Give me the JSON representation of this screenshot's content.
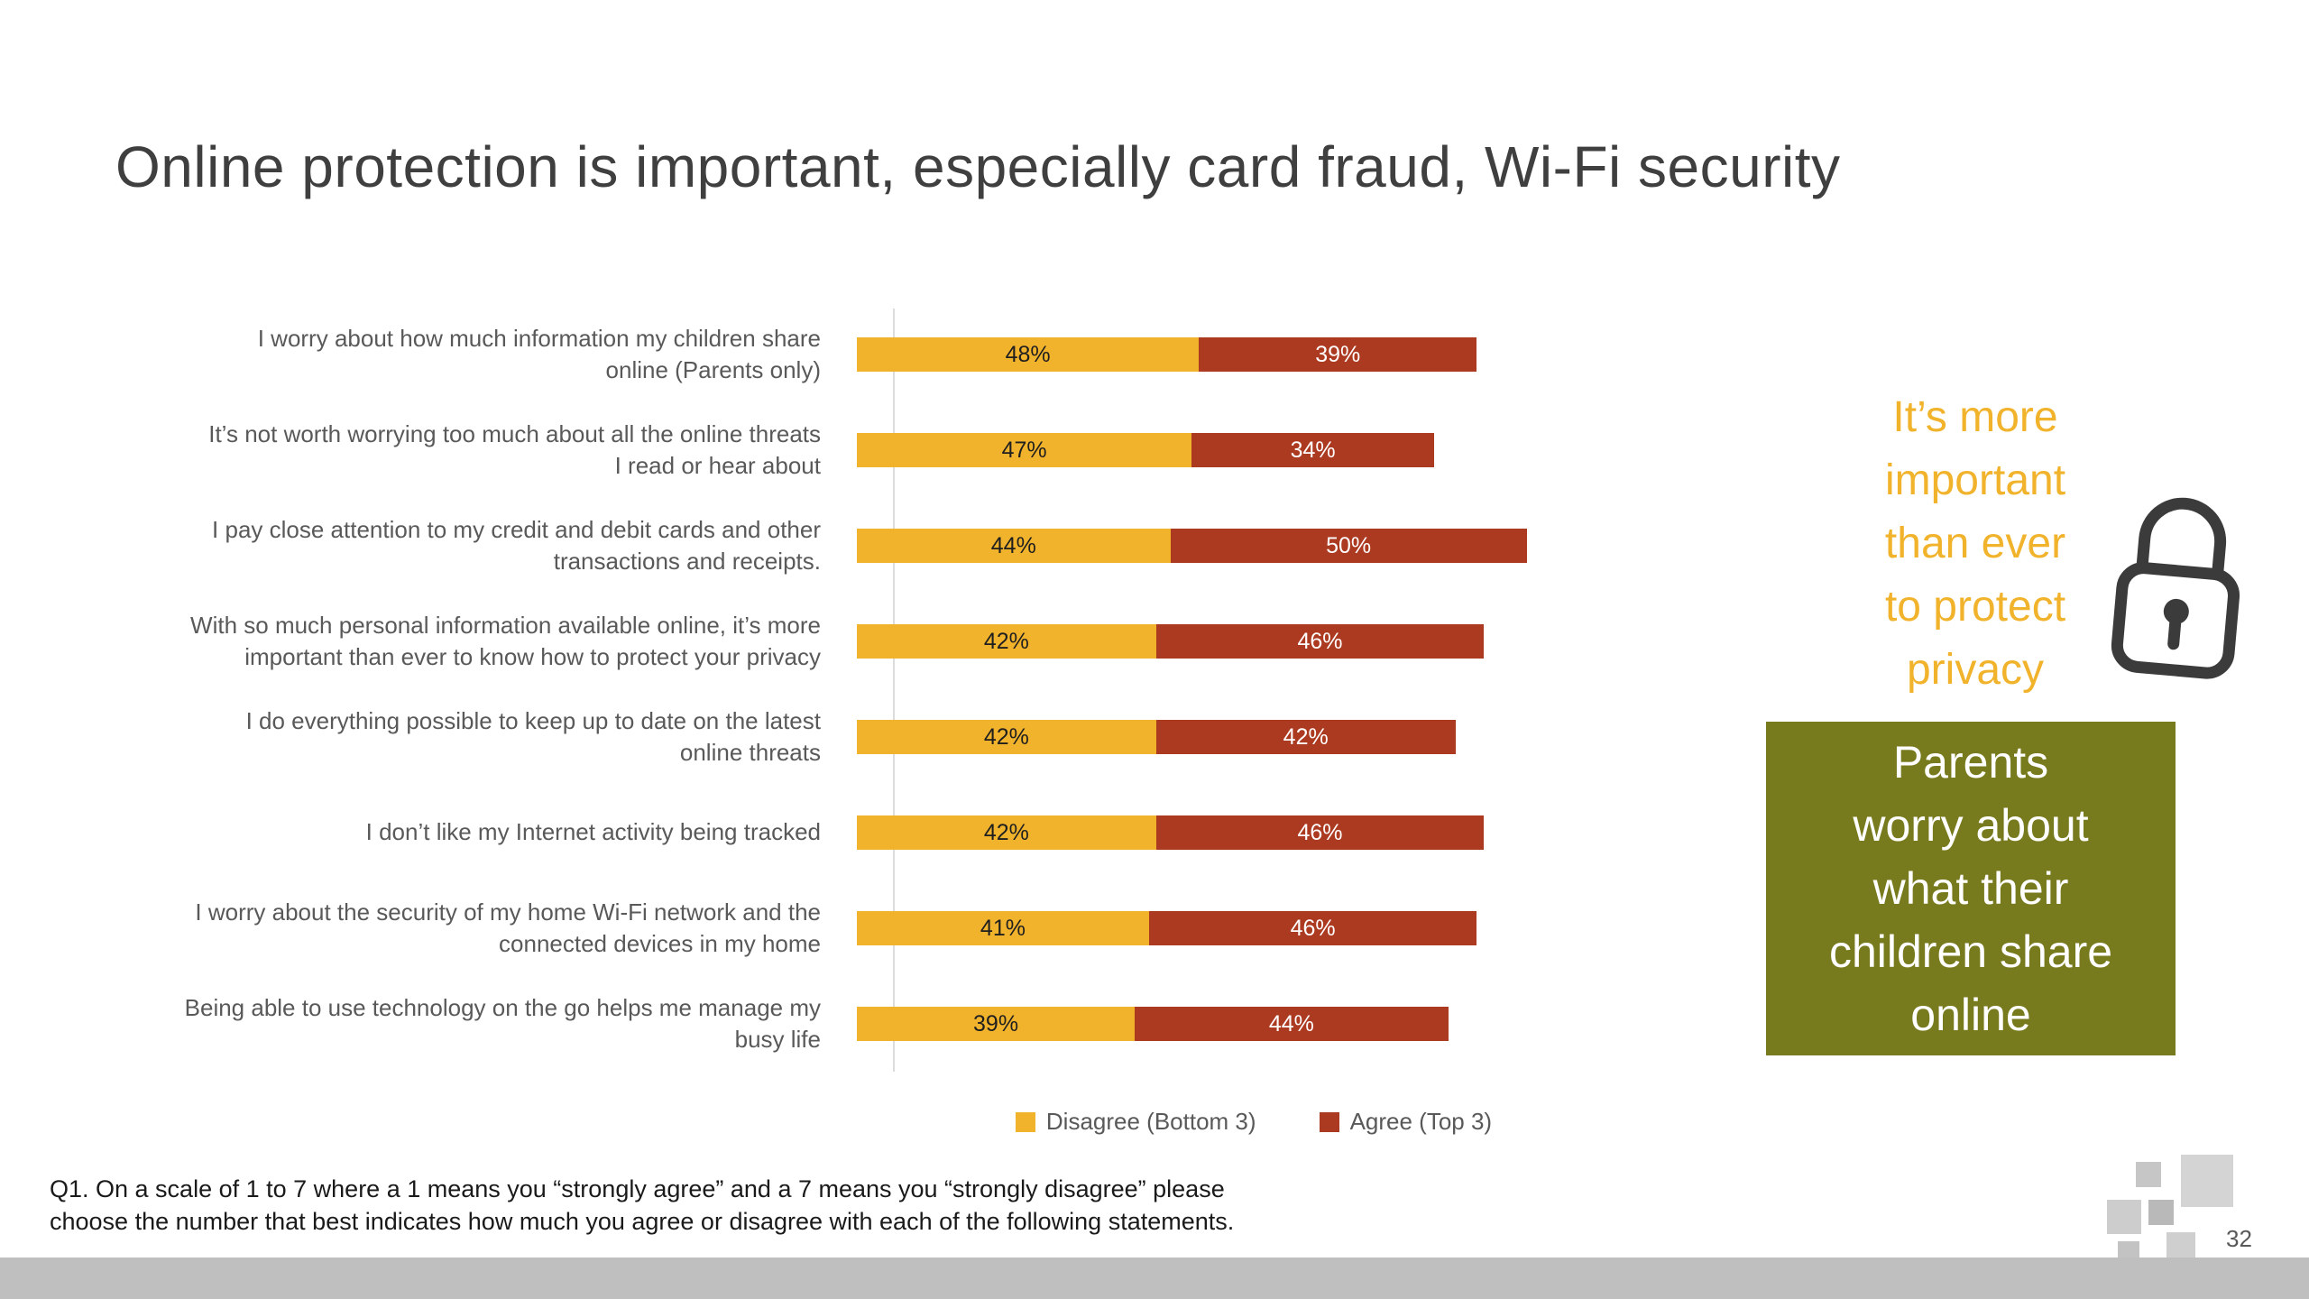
{
  "slide": {
    "title": "Online protection is important, especially card fraud, Wi-Fi security",
    "footnote": "Q1. On a scale of 1 to 7 where a 1 means you “strongly agree” and a 7 means you “strongly disagree” please\nchoose the number that best indicates how much you agree or disagree with each of the following statements.",
    "page_number": "32"
  },
  "chart_data": {
    "type": "bar",
    "orientation": "horizontal",
    "stacked": true,
    "xlim": [
      0,
      100
    ],
    "unit": "%",
    "grid": false,
    "legend_position": "bottom",
    "categories": [
      "I worry about how much information my children share\nonline (Parents only)",
      "It’s not worth worrying too much about all the online threats\nI read or hear about",
      "I pay close attention to my credit and debit cards and other\ntransactions and receipts.",
      "With so much personal information available online, it’s more\nimportant than ever to know how to protect your privacy",
      "I do everything possible to keep up to date on the latest\nonline threats",
      "I don’t like my Internet activity being tracked",
      "I worry about the security of my home Wi-Fi network and the\nconnected devices in my home",
      "Being able to use technology on the go helps me manage my\nbusy life"
    ],
    "series": [
      {
        "name": "Disagree (Bottom 3)",
        "color": "#F2B32C",
        "values": [
          48,
          47,
          44,
          42,
          42,
          42,
          41,
          39
        ]
      },
      {
        "name": "Agree (Top 3)",
        "color": "#AC3A21",
        "values": [
          39,
          34,
          50,
          46,
          42,
          46,
          46,
          44
        ]
      }
    ]
  },
  "callouts": {
    "privacy_note": {
      "text": "It’s more\nimportant\nthan ever\nto protect\nprivacy",
      "color": "#F2B32C",
      "icon": "lock-icon"
    },
    "parents_box": {
      "text": "Parents\nworry about\nwhat their\nchildren share\nonline",
      "background": "#787A1E",
      "text_color": "#FFFFFF"
    }
  }
}
